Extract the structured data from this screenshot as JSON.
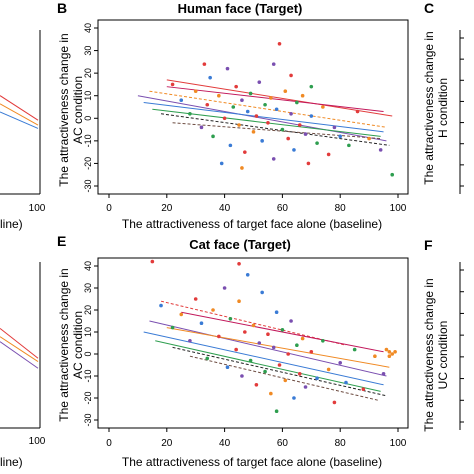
{
  "figure": {
    "panel_letters": [
      "B",
      "C",
      "E",
      "F"
    ],
    "side_ylabel_left_tick": "100",
    "side_xlabel_fragment": "line)",
    "right_axis_labels": [
      {
        "line1": "The attractiveness change in",
        "line2": "H condition"
      },
      {
        "line1": "The attractiveness change in",
        "line2": "UC condition"
      }
    ]
  },
  "chart_data": [
    {
      "type": "scatter",
      "panel": "B",
      "title": "Human face (Target)",
      "xlabel": "The attractiveness of target face alone (baseline)",
      "ylabel_line1": "The attractiveness change in",
      "ylabel_line2": "AC condition",
      "xlim": [
        0,
        100
      ],
      "ylim": [
        -30,
        40
      ],
      "xticks": [
        "0",
        "20",
        "40",
        "60",
        "80",
        "100"
      ],
      "yticks": [
        "-30",
        "-20",
        "-10",
        "0",
        "10",
        "20",
        "30",
        "40"
      ],
      "regression_lines": [
        {
          "x": [
            20,
            98
          ],
          "y": [
            17,
            1
          ],
          "color": "#e23b3b",
          "dashed": false
        },
        {
          "x": [
            10,
            96
          ],
          "y": [
            10,
            -10
          ],
          "color": "#7a4fb0",
          "dashed": false
        },
        {
          "x": [
            12,
            95
          ],
          "y": [
            7,
            -6
          ],
          "color": "#3a7bd5",
          "dashed": false
        },
        {
          "x": [
            15,
            94
          ],
          "y": [
            4,
            -8
          ],
          "color": "#2e9e4f",
          "dashed": false
        },
        {
          "x": [
            14,
            96
          ],
          "y": [
            12,
            -4
          ],
          "color": "#f08a24",
          "dashed": true
        },
        {
          "x": [
            18,
            97
          ],
          "y": [
            2,
            -12
          ],
          "color": "#222222",
          "dashed": true
        },
        {
          "x": [
            20,
            95
          ],
          "y": [
            14,
            3
          ],
          "color": "#c2185b",
          "dashed": false
        },
        {
          "x": [
            22,
            94
          ],
          "y": [
            -2,
            -9
          ],
          "color": "#6d4c41",
          "dashed": true
        }
      ],
      "points": [
        [
          22,
          15,
          "#e23b3b"
        ],
        [
          25,
          8,
          "#3a7bd5"
        ],
        [
          28,
          2,
          "#2e9e4f"
        ],
        [
          30,
          12,
          "#f08a24"
        ],
        [
          32,
          -4,
          "#7a4fb0"
        ],
        [
          34,
          6,
          "#e23b3b"
        ],
        [
          35,
          18,
          "#3a7bd5"
        ],
        [
          36,
          -8,
          "#2e9e4f"
        ],
        [
          38,
          10,
          "#f08a24"
        ],
        [
          40,
          0,
          "#e23b3b"
        ],
        [
          41,
          22,
          "#7a4fb0"
        ],
        [
          42,
          -12,
          "#3a7bd5"
        ],
        [
          43,
          5,
          "#2e9e4f"
        ],
        [
          44,
          14,
          "#e23b3b"
        ],
        [
          45,
          -3,
          "#f08a24"
        ],
        [
          46,
          8,
          "#7a4fb0"
        ],
        [
          47,
          -15,
          "#e23b3b"
        ],
        [
          48,
          3,
          "#3a7bd5"
        ],
        [
          49,
          11,
          "#2e9e4f"
        ],
        [
          50,
          -6,
          "#f08a24"
        ],
        [
          51,
          1,
          "#e23b3b"
        ],
        [
          52,
          16,
          "#7a4fb0"
        ],
        [
          53,
          -10,
          "#3a7bd5"
        ],
        [
          54,
          6,
          "#2e9e4f"
        ],
        [
          55,
          -2,
          "#e23b3b"
        ],
        [
          56,
          9,
          "#f08a24"
        ],
        [
          57,
          -18,
          "#7a4fb0"
        ],
        [
          58,
          4,
          "#3a7bd5"
        ],
        [
          59,
          33,
          "#e23b3b"
        ],
        [
          60,
          -5,
          "#2e9e4f"
        ],
        [
          61,
          12,
          "#f08a24"
        ],
        [
          62,
          -9,
          "#e23b3b"
        ],
        [
          63,
          2,
          "#7a4fb0"
        ],
        [
          64,
          -14,
          "#3a7bd5"
        ],
        [
          65,
          7,
          "#2e9e4f"
        ],
        [
          66,
          -3,
          "#e23b3b"
        ],
        [
          67,
          10,
          "#f08a24"
        ],
        [
          68,
          -7,
          "#7a4fb0"
        ],
        [
          69,
          -20,
          "#e23b3b"
        ],
        [
          70,
          1,
          "#3a7bd5"
        ],
        [
          72,
          -11,
          "#2e9e4f"
        ],
        [
          74,
          5,
          "#f08a24"
        ],
        [
          76,
          -16,
          "#e23b3b"
        ],
        [
          78,
          -4,
          "#7a4fb0"
        ],
        [
          80,
          -8,
          "#3a7bd5"
        ],
        [
          83,
          -12,
          "#2e9e4f"
        ],
        [
          86,
          3,
          "#e23b3b"
        ],
        [
          90,
          -9,
          "#f08a24"
        ],
        [
          94,
          -14,
          "#7a4fb0"
        ],
        [
          98,
          -25,
          "#2e9e4f"
        ],
        [
          33,
          24,
          "#e23b3b"
        ],
        [
          39,
          -20,
          "#3a7bd5"
        ],
        [
          57,
          24,
          "#7a4fb0"
        ],
        [
          63,
          19,
          "#e23b3b"
        ],
        [
          46,
          -22,
          "#f08a24"
        ],
        [
          70,
          14,
          "#2e9e4f"
        ]
      ]
    },
    {
      "type": "scatter",
      "panel": "E",
      "title": "Cat face (Target)",
      "xlabel": "The attractiveness of target face alone (baseline)",
      "ylabel_line1": "The attractiveness change in",
      "ylabel_line2": "AC condition",
      "xlim": [
        0,
        100
      ],
      "ylim": [
        -30,
        40
      ],
      "xticks": [
        "0",
        "20",
        "40",
        "60",
        "80",
        "100"
      ],
      "yticks": [
        "-30",
        "-20",
        "-10",
        "0",
        "10",
        "20",
        "30",
        "40"
      ],
      "regression_lines": [
        {
          "x": [
            18,
            82
          ],
          "y": [
            24,
            4
          ],
          "color": "#e23b3b",
          "dashed": true
        },
        {
          "x": [
            14,
            96
          ],
          "y": [
            15,
            -10
          ],
          "color": "#7a4fb0",
          "dashed": false
        },
        {
          "x": [
            12,
            95
          ],
          "y": [
            10,
            -14
          ],
          "color": "#3a7bd5",
          "dashed": false
        },
        {
          "x": [
            16,
            94
          ],
          "y": [
            6,
            -17
          ],
          "color": "#2e9e4f",
          "dashed": false
        },
        {
          "x": [
            20,
            97
          ],
          "y": [
            12,
            -6
          ],
          "color": "#f08a24",
          "dashed": false
        },
        {
          "x": [
            22,
            96
          ],
          "y": [
            3,
            -19
          ],
          "color": "#222222",
          "dashed": true
        },
        {
          "x": [
            25,
            95
          ],
          "y": [
            19,
            1
          ],
          "color": "#c2185b",
          "dashed": false
        },
        {
          "x": [
            28,
            93
          ],
          "y": [
            -1,
            -21
          ],
          "color": "#6d4c41",
          "dashed": true
        }
      ],
      "points": [
        [
          15,
          42,
          "#e23b3b"
        ],
        [
          18,
          22,
          "#3a7bd5"
        ],
        [
          22,
          12,
          "#2e9e4f"
        ],
        [
          25,
          18,
          "#f08a24"
        ],
        [
          28,
          6,
          "#7a4fb0"
        ],
        [
          30,
          25,
          "#e23b3b"
        ],
        [
          32,
          14,
          "#3a7bd5"
        ],
        [
          34,
          -2,
          "#2e9e4f"
        ],
        [
          36,
          20,
          "#f08a24"
        ],
        [
          38,
          8,
          "#e23b3b"
        ],
        [
          40,
          30,
          "#7a4fb0"
        ],
        [
          41,
          -6,
          "#3a7bd5"
        ],
        [
          42,
          16,
          "#2e9e4f"
        ],
        [
          44,
          2,
          "#e23b3b"
        ],
        [
          45,
          24,
          "#f08a24"
        ],
        [
          46,
          -10,
          "#7a4fb0"
        ],
        [
          47,
          10,
          "#e23b3b"
        ],
        [
          48,
          36,
          "#3a7bd5"
        ],
        [
          49,
          -3,
          "#2e9e4f"
        ],
        [
          50,
          13,
          "#f08a24"
        ],
        [
          51,
          -14,
          "#e23b3b"
        ],
        [
          52,
          5,
          "#7a4fb0"
        ],
        [
          53,
          28,
          "#3a7bd5"
        ],
        [
          54,
          -8,
          "#2e9e4f"
        ],
        [
          55,
          9,
          "#e23b3b"
        ],
        [
          56,
          -18,
          "#f08a24"
        ],
        [
          57,
          3,
          "#7a4fb0"
        ],
        [
          58,
          19,
          "#3a7bd5"
        ],
        [
          59,
          -5,
          "#e23b3b"
        ],
        [
          60,
          11,
          "#2e9e4f"
        ],
        [
          61,
          -12,
          "#f08a24"
        ],
        [
          62,
          0,
          "#e23b3b"
        ],
        [
          63,
          15,
          "#7a4fb0"
        ],
        [
          64,
          -20,
          "#3a7bd5"
        ],
        [
          65,
          4,
          "#2e9e4f"
        ],
        [
          66,
          -9,
          "#e23b3b"
        ],
        [
          67,
          7,
          "#f08a24"
        ],
        [
          68,
          -15,
          "#7a4fb0"
        ],
        [
          70,
          1,
          "#e23b3b"
        ],
        [
          72,
          -11,
          "#3a7bd5"
        ],
        [
          74,
          6,
          "#2e9e4f"
        ],
        [
          76,
          -7,
          "#f08a24"
        ],
        [
          78,
          -22,
          "#e23b3b"
        ],
        [
          80,
          -4,
          "#7a4fb0"
        ],
        [
          82,
          -13,
          "#3a7bd5"
        ],
        [
          85,
          2,
          "#2e9e4f"
        ],
        [
          88,
          -16,
          "#e23b3b"
        ],
        [
          92,
          -1,
          "#f08a24"
        ],
        [
          95,
          -9,
          "#7a4fb0"
        ],
        [
          97,
          1,
          "#f08a24"
        ],
        [
          98,
          0,
          "#f08a24"
        ],
        [
          96,
          2,
          "#f08a24"
        ],
        [
          99,
          1,
          "#f08a24"
        ],
        [
          97,
          -1,
          "#f08a24"
        ],
        [
          45,
          41,
          "#e23b3b"
        ],
        [
          58,
          -26,
          "#2e9e4f"
        ]
      ]
    },
    {
      "type": "scatter",
      "panel": "left-top-partial",
      "regression_lines": [
        {
          "x": [
            0,
            1
          ],
          "y": [
            0.6,
            0.45
          ],
          "color": "#e23b3b",
          "dashed": false
        },
        {
          "x": [
            0,
            1
          ],
          "y": [
            0.55,
            0.42
          ],
          "color": "#f08a24",
          "dashed": false
        },
        {
          "x": [
            0,
            1
          ],
          "y": [
            0.5,
            0.4
          ],
          "color": "#3a7bd5",
          "dashed": false
        }
      ]
    },
    {
      "type": "scatter",
      "panel": "left-bottom-partial",
      "regression_lines": [
        {
          "x": [
            0,
            1
          ],
          "y": [
            0.6,
            0.42
          ],
          "color": "#e23b3b",
          "dashed": false
        },
        {
          "x": [
            0,
            1
          ],
          "y": [
            0.55,
            0.4
          ],
          "color": "#f08a24",
          "dashed": false
        },
        {
          "x": [
            0,
            1
          ],
          "y": [
            0.52,
            0.36
          ],
          "color": "#7a4fb0",
          "dashed": false
        }
      ]
    }
  ]
}
